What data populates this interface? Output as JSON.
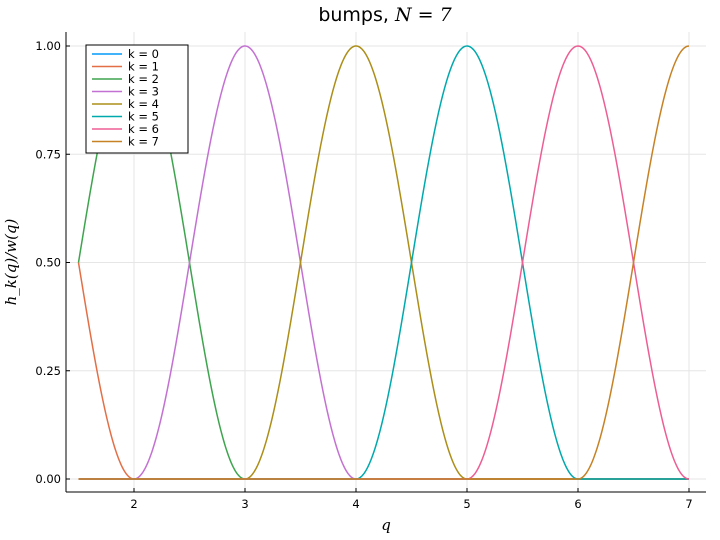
{
  "chart_data": {
    "type": "line",
    "title_prefix": "bumps, ",
    "title_math": "N = 7",
    "xlabel": "q",
    "ylabel": "h_k(q)/w(q)",
    "xlim": [
      1.5,
      7.0
    ],
    "ylim": [
      0.0,
      1.0
    ],
    "xticks": [
      2,
      3,
      4,
      5,
      6,
      7
    ],
    "xtick_labels": [
      "2",
      "3",
      "4",
      "5",
      "6",
      "7"
    ],
    "yticks": [
      0,
      0.25,
      0.5,
      0.75,
      1.0
    ],
    "ytick_labels": [
      "0.00",
      "0.25",
      "0.50",
      "0.75",
      "1.00"
    ],
    "grid": true,
    "legend_position": "top-left",
    "curve_shape": "cos^2 bump of half-width 1 centred at q = k",
    "domain": [
      1.5,
      7.0
    ],
    "series": [
      {
        "name": "k = 0",
        "center": 0,
        "color": "#009AFA"
      },
      {
        "name": "k = 1",
        "center": 1,
        "color": "#E36F47"
      },
      {
        "name": "k = 2",
        "center": 2,
        "color": "#3EA44E"
      },
      {
        "name": "k = 3",
        "center": 3,
        "color": "#C371D2"
      },
      {
        "name": "k = 4",
        "center": 4,
        "color": "#AC8E18"
      },
      {
        "name": "k = 5",
        "center": 5,
        "color": "#00A9AD"
      },
      {
        "name": "k = 6",
        "center": 6,
        "color": "#ED5E93"
      },
      {
        "name": "k = 7",
        "center": 7,
        "color": "#C68225"
      }
    ]
  }
}
